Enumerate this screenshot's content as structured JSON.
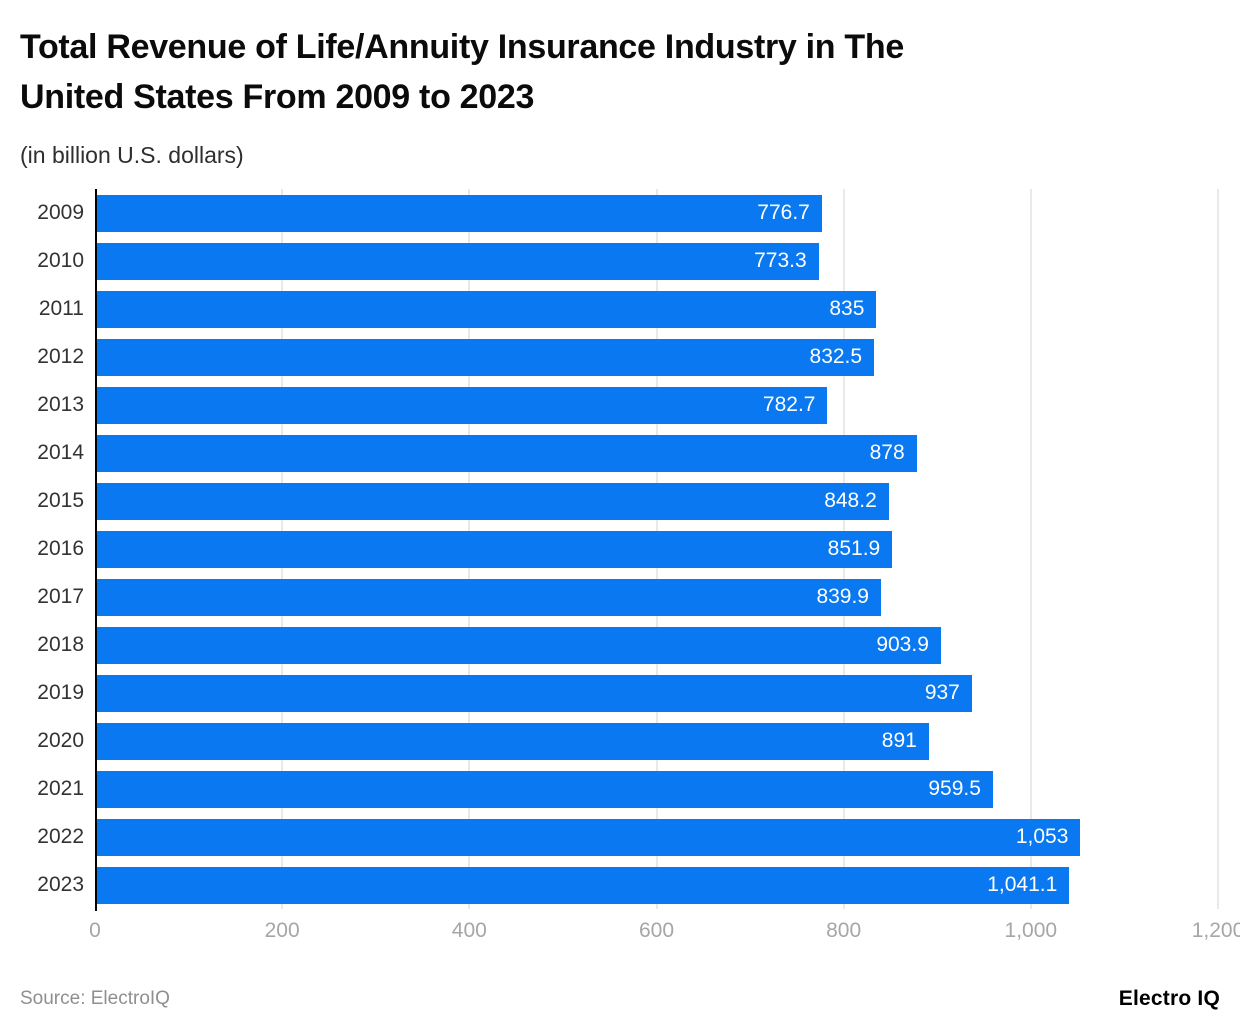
{
  "chart_data": {
    "type": "bar",
    "orientation": "horizontal",
    "title": "Total Revenue of Life/Annuity Insurance Industry in The\nUnited States From 2009 to 2023",
    "subtitle": "(in billion U.S. dollars)",
    "categories": [
      "2009",
      "2010",
      "2011",
      "2012",
      "2013",
      "2014",
      "2015",
      "2016",
      "2017",
      "2018",
      "2019",
      "2020",
      "2021",
      "2022",
      "2023"
    ],
    "values": [
      776.7,
      773.3,
      835,
      832.5,
      782.7,
      878,
      848.2,
      851.9,
      839.9,
      903.9,
      937,
      891,
      959.5,
      1053,
      1041.1
    ],
    "value_labels": [
      "776.7",
      "773.3",
      "835",
      "832.5",
      "782.7",
      "878",
      "848.2",
      "851.9",
      "839.9",
      "903.9",
      "937",
      "891",
      "959.5",
      "1,053",
      "1,041.1"
    ],
    "xlabel": "",
    "ylabel": "",
    "xlim": [
      0,
      1200
    ],
    "x_ticks": [
      0,
      200,
      400,
      600,
      800,
      1000,
      1200
    ],
    "x_tick_labels": [
      "0",
      "200",
      "400",
      "600",
      "800",
      "1,000",
      "1,200"
    ],
    "grid": "vertical-gridlines",
    "legend": "none",
    "bar_color": "#0a78f0",
    "value_label_color": "#ffffff",
    "gridline_color": "#e9e9e9",
    "axis_line_color": "#000000",
    "tick_label_color": "#a6a6a6"
  },
  "footer": {
    "source": "Source: ElectroIQ",
    "logo": "Electro IQ"
  }
}
